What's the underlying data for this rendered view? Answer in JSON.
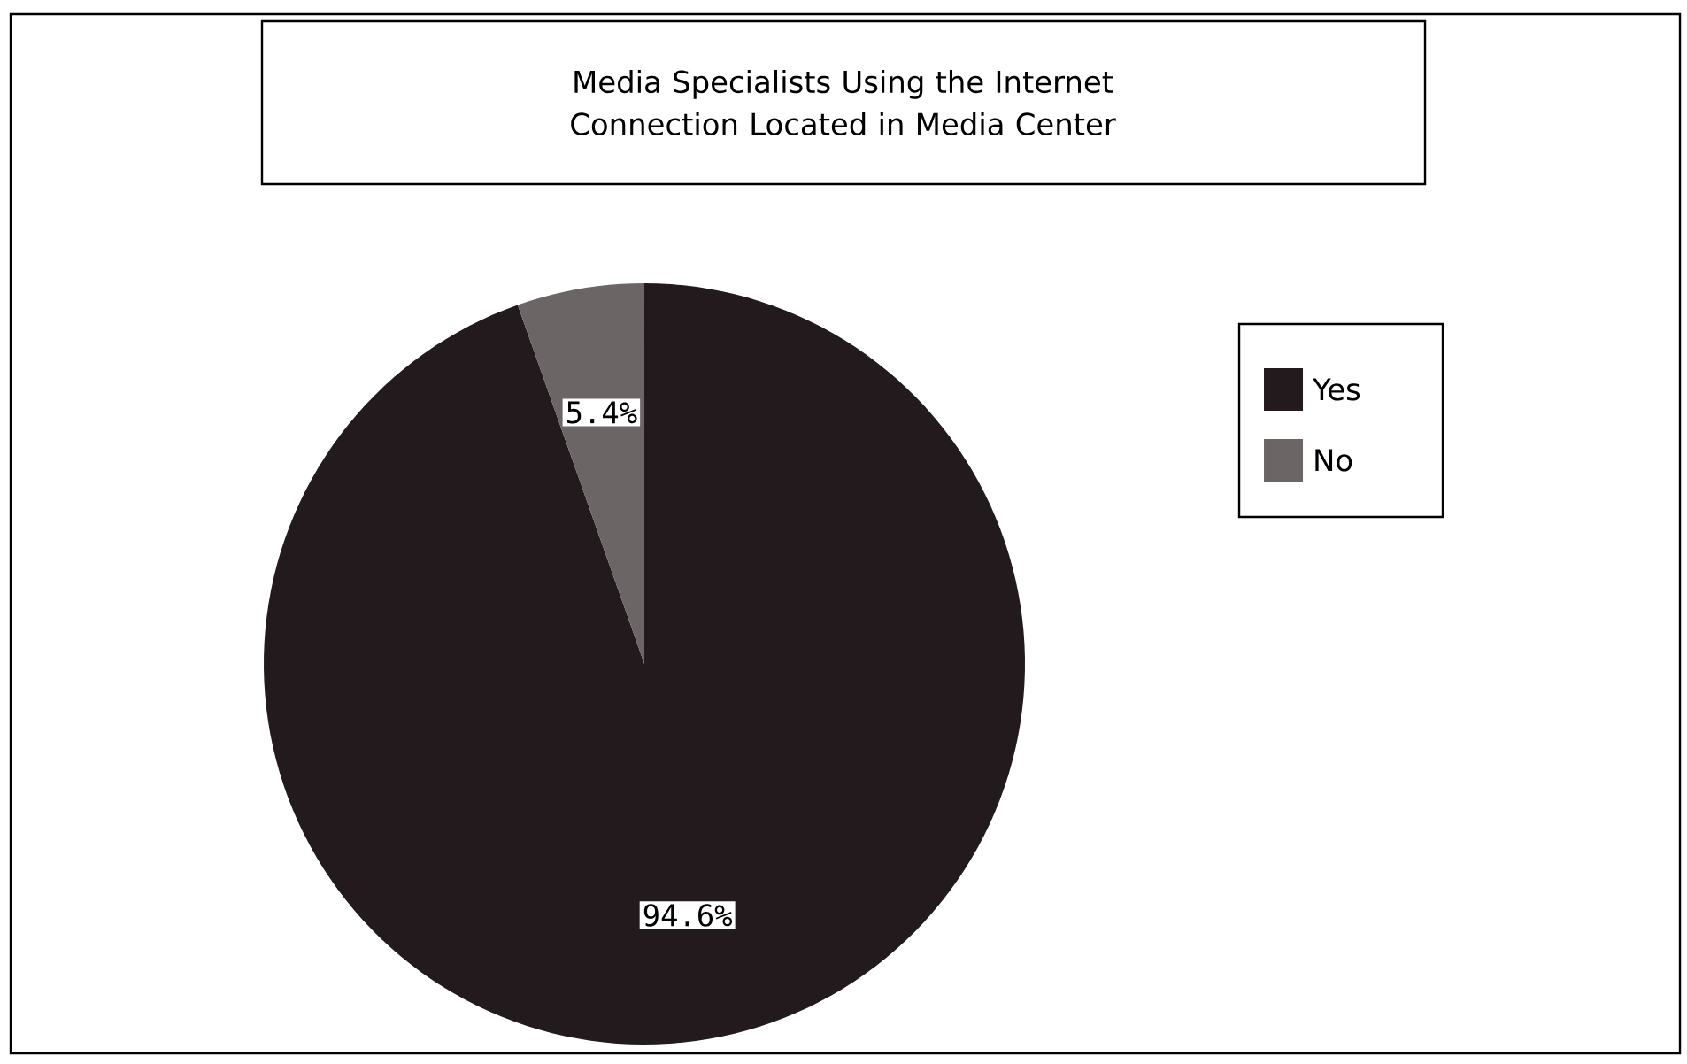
{
  "chart_data": {
    "type": "pie",
    "title": "Media Specialists Using the Internet Connection Located in Media Center",
    "categories": [
      "Yes",
      "No"
    ],
    "values": [
      94.6,
      5.4
    ],
    "colors": [
      "#221a1d",
      "#6b6566"
    ],
    "value_labels": [
      "94.6%",
      "5.4%"
    ],
    "legend": "right"
  }
}
